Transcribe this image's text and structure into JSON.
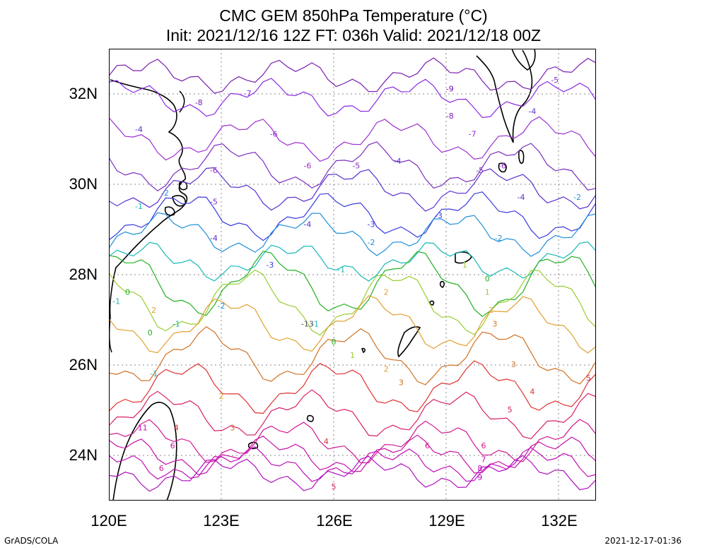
{
  "title": {
    "line1": "CMC GEM 850hPa Temperature (°C)",
    "line2": "Init: 2021/12/16 12Z  FT: 036h  Valid: 2021/12/18 00Z"
  },
  "axes": {
    "x_ticks": [
      "120E",
      "123E",
      "126E",
      "129E",
      "132E"
    ],
    "y_ticks": [
      "32N",
      "30N",
      "28N",
      "26N",
      "24N"
    ],
    "x_range_deg": [
      120,
      133
    ],
    "y_range_deg": [
      23,
      33
    ],
    "grid": "dotted"
  },
  "footer": {
    "credit": "GrADS/COLA",
    "timestamp": "2021-12-17-01:36"
  },
  "contour_colors": {
    "-9": "#6a0dad",
    "-8": "#7a1fb0",
    "-7": "#8a2be2",
    "-6": "#9b30d0",
    "-5": "#7b2fbf",
    "-4": "#5a2fd0",
    "-3": "#3a3ae0",
    "-2": "#1f8fd8",
    "-1": "#17b8b8",
    "0": "#22b022",
    "1": "#9acd32",
    "2": "#e0a030",
    "3": "#d07020",
    "4": "#e03030",
    "5": "#d8206a",
    "6": "#d01890",
    "7": "#c810a8",
    "8": "#c010b8",
    "9": "#b010c0",
    "11": "#c010b0"
  },
  "contour_labels": [
    {
      "v": "-9",
      "lon": 129.1,
      "lat": 32.1
    },
    {
      "v": "-8",
      "lon": 129.1,
      "lat": 31.5
    },
    {
      "v": "-8",
      "lon": 122.4,
      "lat": 31.8
    },
    {
      "v": "-7",
      "lon": 123.7,
      "lat": 32.0
    },
    {
      "v": "-7",
      "lon": 129.7,
      "lat": 31.1
    },
    {
      "v": "-6",
      "lon": 124.4,
      "lat": 31.1
    },
    {
      "v": "-6",
      "lon": 122.8,
      "lat": 30.3
    },
    {
      "v": "-6",
      "lon": 125.3,
      "lat": 30.4
    },
    {
      "v": "-6",
      "lon": 130.5,
      "lat": 30.4
    },
    {
      "v": "-5",
      "lon": 126.6,
      "lat": 30.4
    },
    {
      "v": "-5",
      "lon": 129.9,
      "lat": 30.3
    },
    {
      "v": "-5",
      "lon": 122.8,
      "lat": 29.6
    },
    {
      "v": "-5",
      "lon": 131.9,
      "lat": 32.3
    },
    {
      "v": "-4",
      "lon": 127.7,
      "lat": 30.5
    },
    {
      "v": "-4",
      "lon": 120.8,
      "lat": 31.2
    },
    {
      "v": "-4",
      "lon": 125.3,
      "lat": 29.1
    },
    {
      "v": "-4",
      "lon": 122.8,
      "lat": 28.8
    },
    {
      "v": "-4",
      "lon": 131.0,
      "lat": 29.7
    },
    {
      "v": "-4",
      "lon": 131.3,
      "lat": 31.6
    },
    {
      "v": "-3",
      "lon": 127.0,
      "lat": 29.1
    },
    {
      "v": "-3",
      "lon": 128.8,
      "lat": 29.3
    },
    {
      "v": "-3",
      "lon": 124.3,
      "lat": 28.2
    },
    {
      "v": "-2",
      "lon": 127.0,
      "lat": 28.7
    },
    {
      "v": "-2",
      "lon": 130.4,
      "lat": 28.8
    },
    {
      "v": "-2",
      "lon": 123.0,
      "lat": 27.3
    },
    {
      "v": "-2",
      "lon": 121.5,
      "lat": 29.8
    },
    {
      "v": "-2",
      "lon": 132.5,
      "lat": 29.7
    },
    {
      "v": "-1",
      "lon": 126.2,
      "lat": 28.1
    },
    {
      "v": "-1",
      "lon": 120.8,
      "lat": 29.5
    },
    {
      "v": "-1",
      "lon": 121.8,
      "lat": 26.9
    },
    {
      "v": "-1",
      "lon": 125.5,
      "lat": 26.9
    },
    {
      "v": "1",
      "lon": 129.5,
      "lat": 28.2
    },
    {
      "v": "0",
      "lon": 126.0,
      "lat": 26.5
    },
    {
      "v": "0",
      "lon": 121.1,
      "lat": 26.7
    },
    {
      "v": "0",
      "lon": 120.5,
      "lat": 27.6
    },
    {
      "v": "0",
      "lon": 130.1,
      "lat": 27.9
    },
    {
      "v": "-1",
      "lon": 120.2,
      "lat": 27.4
    },
    {
      "v": "1",
      "lon": 126.5,
      "lat": 26.2
    },
    {
      "v": "1",
      "lon": 130.1,
      "lat": 27.6
    },
    {
      "v": "-1",
      "lon": 121.2,
      "lat": 25.8
    },
    {
      "v": "2",
      "lon": 127.4,
      "lat": 27.6
    },
    {
      "v": "2",
      "lon": 121.2,
      "lat": 27.2
    },
    {
      "v": "2",
      "lon": 130.2,
      "lat": 27.2
    },
    {
      "v": "2",
      "lon": 127.4,
      "lat": 25.9
    },
    {
      "v": "2",
      "lon": 123.0,
      "lat": 25.3
    },
    {
      "v": "3",
      "lon": 130.3,
      "lat": 26.9
    },
    {
      "v": "3",
      "lon": 127.8,
      "lat": 25.6
    },
    {
      "v": "3",
      "lon": 130.8,
      "lat": 26.0
    },
    {
      "v": "3",
      "lon": 123.3,
      "lat": 24.6
    },
    {
      "v": "4",
      "lon": 121.8,
      "lat": 24.6
    },
    {
      "v": "4",
      "lon": 125.8,
      "lat": 24.3
    },
    {
      "v": "4",
      "lon": 131.3,
      "lat": 25.4
    },
    {
      "v": "5",
      "lon": 132.8,
      "lat": 25.7
    },
    {
      "v": "5",
      "lon": 130.7,
      "lat": 25.0
    },
    {
      "v": "5",
      "lon": 126.0,
      "lat": 23.3
    },
    {
      "v": "6",
      "lon": 128.5,
      "lat": 24.2
    },
    {
      "v": "6",
      "lon": 130.0,
      "lat": 24.2
    },
    {
      "v": "6",
      "lon": 121.7,
      "lat": 24.2
    },
    {
      "v": "7",
      "lon": 130.0,
      "lat": 23.9
    },
    {
      "v": "8",
      "lon": 129.9,
      "lat": 23.7
    },
    {
      "v": "9",
      "lon": 129.9,
      "lat": 23.5
    },
    {
      "v": "11",
      "lon": 120.9,
      "lat": 24.6
    },
    {
      "v": "6",
      "lon": 121.4,
      "lat": 23.7
    },
    {
      "v": "-13",
      "lon": 125.3,
      "lat": 26.9
    }
  ]
}
